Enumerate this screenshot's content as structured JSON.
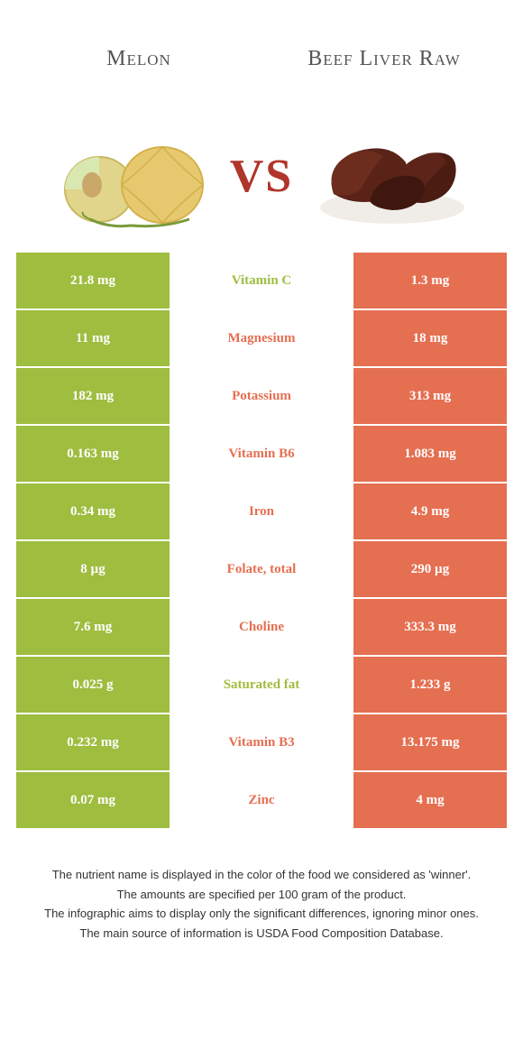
{
  "left_title": "Melon",
  "right_title": "Beef Liver Raw",
  "vs": "VS",
  "colors": {
    "left": "#9fbd3f",
    "right": "#e56f51",
    "row_gap": "#ffffff",
    "text_white": "#ffffff"
  },
  "rows": [
    {
      "nutrient": "Vitamin C",
      "left": "21.8 mg",
      "right": "1.3 mg",
      "winner": "left"
    },
    {
      "nutrient": "Magnesium",
      "left": "11 mg",
      "right": "18 mg",
      "winner": "right"
    },
    {
      "nutrient": "Potassium",
      "left": "182 mg",
      "right": "313 mg",
      "winner": "right"
    },
    {
      "nutrient": "Vitamin B6",
      "left": "0.163 mg",
      "right": "1.083 mg",
      "winner": "right"
    },
    {
      "nutrient": "Iron",
      "left": "0.34 mg",
      "right": "4.9 mg",
      "winner": "right"
    },
    {
      "nutrient": "Folate, total",
      "left": "8 µg",
      "right": "290 µg",
      "winner": "right"
    },
    {
      "nutrient": "Choline",
      "left": "7.6 mg",
      "right": "333.3 mg",
      "winner": "right"
    },
    {
      "nutrient": "Saturated fat",
      "left": "0.025 g",
      "right": "1.233 g",
      "winner": "left"
    },
    {
      "nutrient": "Vitamin B3",
      "left": "0.232 mg",
      "right": "13.175 mg",
      "winner": "right"
    },
    {
      "nutrient": "Zinc",
      "left": "0.07 mg",
      "right": "4 mg",
      "winner": "right"
    }
  ],
  "footer": [
    "The nutrient name is displayed in the color of the food we considered as 'winner'.",
    "The amounts are specified per 100 gram of the product.",
    "The infographic aims to display only the significant differences, ignoring minor ones.",
    "The main source of information is USDA Food Composition Database."
  ]
}
